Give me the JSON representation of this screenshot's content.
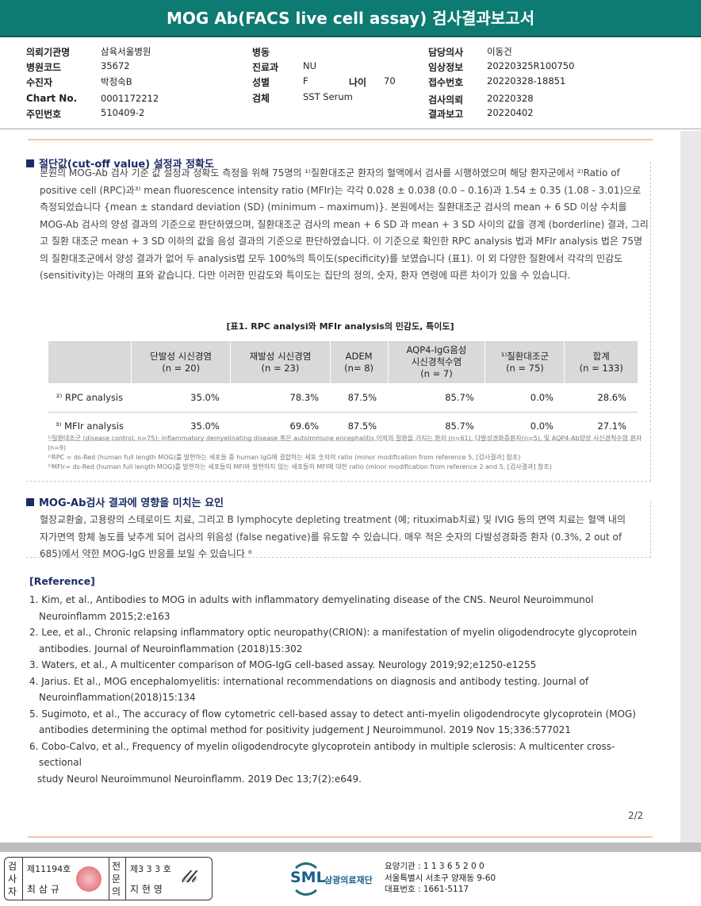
{
  "title": "MOG Ab(FACS live cell assay) 검사결과보고서",
  "info": {
    "col1": [
      {
        "label": "의뢰기관명",
        "value": "삼육서울병원"
      },
      {
        "label": "병원코드",
        "value": "35672"
      },
      {
        "label": "수진자",
        "value": "박정숙B"
      },
      {
        "label": "Chart No.",
        "value": "0001172212"
      },
      {
        "label": "주민번호",
        "value": "510409-2"
      }
    ],
    "col2": [
      {
        "label": "병동",
        "value": ""
      },
      {
        "label": "진료과",
        "value": "NU"
      },
      {
        "label": "성별",
        "value": "F"
      },
      {
        "label": "검체",
        "value": "SST Serum"
      }
    ],
    "age": {
      "label": "나이",
      "value": "70"
    },
    "col3": [
      {
        "label": "담당의사",
        "value": "이동건"
      },
      {
        "label": "임상정보",
        "value": "20220325R100750"
      },
      {
        "label": "접수번호",
        "value": "20220328-18851"
      },
      {
        "label": "검사의뢰",
        "value": "20220328"
      },
      {
        "label": "결과보고",
        "value": "20220402"
      }
    ]
  },
  "section1": {
    "heading": "절단값(cut-off value) 설정과 정확도",
    "paragraph": "본원의 MOG-Ab 검사 기준 값 설정과 정확도 측정을 위해 75명의 ¹⁾질환대조군 환자의 혈액에서 검사를 시행하였으며 해당 환자군에서 ²⁾Ratio of positive cell (RPC)과³⁾ mean fluorescence intensity ratio (MFIr)는 각각 0.028 ± 0.038 (0.0 – 0.16)과 1.54 ± 0.35 (1.08 - 3.01)으로 측정되었습니다 {mean ± standard deviation (SD) (minimum – maximum)}. 본원에서는 질환대조군 검사의 mean + 6 SD 이상 수치를 MOG-Ab 검사의 양성 결과의 기준으로 판단하였으며, 질환대조군 검사의 mean + 6 SD 과 mean + 3 SD 사이의 값을 경계 (borderline) 결과, 그리고 질환 대조군 mean + 3 SD 이하의 값을 음성 결과의 기준으로 판단하였습니다. 이 기준으로 확인한 RPC analysis 법과 MFIr analysis 법은 75명의 질환대조군에서 양성 결과가 없어 두 analysis법 모두 100%의 특이도(specificity)를 보였습니다 (표1).  이 외 다양한 질환에서 각각의 민감도(sensitivity)는 아래의 표와 같습니다. 다만 이러한 민감도와 특이도는 집단의 정의, 숫자, 환자 연령에 따른 차이가 있을 수 있습니다.",
    "table_caption": "[표1. RPC analysi와 MFIr analysis의 민감도, 특이도]",
    "table": {
      "headers": [
        "",
        "단발성 시신경염\n(n = 20)",
        "재발성 시신경염\n(n = 23)",
        "ADEM\n(n= 8)",
        "AQP4-IgG음성\n시신경척수염\n(n = 7)",
        "¹⁾질환대조군\n(n = 75)",
        "합계\n(n = 133)"
      ],
      "rows": [
        {
          "label": "²⁾ RPC analysis",
          "values": [
            "35.0%",
            "78.3%",
            "87.5%",
            "85.7%",
            "0.0%",
            "28.6%"
          ]
        },
        {
          "label": "³⁾ MFIr analysis",
          "values": [
            "35.0%",
            "69.6%",
            "87.5%",
            "85.7%",
            "0.0%",
            "27.1%"
          ]
        }
      ]
    },
    "notes": [
      "¹⁾질환대조군 (disease control, n=75): inflammatory demyelinating disease 혹은 autoimmune encephalitis 이외의 질환을 가지는 환자 (n=61), 다발성경화증환자(n=5), 및 AQP4-Ab양성 시신경척수염 환자(n=9)",
      "²⁾RPC = ds-Red (human full length MOG)를 발현하는 세포들 중 human IgG에 결합하는 세포 숫자의 ratio (minor modification from reference 5, [검사결과] 참조)",
      "³⁾MFIr= ds-Red (human full length MOG)를 발현하는 세포들의 MFI와 발현하지 않는 세포들의 MFI에 대한 ratio (minor modification from reference 2 and 5, [검사결과] 참조)"
    ]
  },
  "section2": {
    "heading": "MOG-Ab검사 결과에 영향을 미치는 요인",
    "paragraph": "혈장교환술, 고용량의 스테로이드 치료, 그리고 B lymphocyte depleting treatment (예; rituximab치료) 및 IVIG 등의 면역 치료는 혈액 내의 자가면역 항체 농도를 낮추게 되어 검사의 위음성 (false negative)를 유도할 수 있습니다. 매우 적은 숫자의 다발성경화증 환자 (0.3%, 2 out of 685)에서 약한 MOG-IgG 반응를 보일 수 있습니다 ⁸"
  },
  "reference": {
    "heading": "[Reference]",
    "items": [
      "1. Kim, et al., Antibodies to MOG in adults with inflammatory demyelinating disease of the CNS. Neurol Neuroimmunol Neuroinflamm 2015;2:e163",
      "2. Lee, et al., Chronic relapsing inflammatory optic neuropathy(CRION): a manifestation of myelin oligodendrocyte glycoprotein antibodies. Journal of Neuroinflammation (2018)15:302",
      "3. Waters, et al., A multicenter comparison of MOG-IgG cell-based assay. Neurology 2019;92;e1250-e1255",
      "4. Jarius. Et al., MOG encephalomyelitis: international recommendations on diagnosis and antibody testing. Journal of Neuroinflammation(2018)15:134",
      "5. Sugimoto, et al., The accuracy of flow cytometric cell-based assay to detect anti-myelin oligodendrocyte glycoprotein (MOG) antibodies determining the optimal method for positivity judgement J Neuroimmunol. 2019 Nov 15;336:577021",
      "6. Cobo-Calvo, et al., Frequency of myelin oligodendrocyte glycoprotein antibody in multiple sclerosis: A multicenter cross-sectional",
      "study Neurol Neuroimmunol Neuroinflamm. 2019 Dec 13;7(2):e649."
    ]
  },
  "page_number": "2/2",
  "footer": {
    "examiner_label": "검사자",
    "examiner_no": "제11194호",
    "examiner_name": "최 삼 규",
    "specialist_label": "전문의",
    "specialist_no": "제3 3 3 호",
    "specialist_name": "지 현 영",
    "logo_text": "SML",
    "org_name": "삼광의료재단",
    "lines": [
      "요양기관 : 1 1 3 6 5 2 0 0",
      "서울특별시 서초구 양재동 9-60",
      "대표번호 : 1661-5117"
    ]
  },
  "colors": {
    "title_bar": "#0d7b72",
    "heading": "#1a2b66",
    "divider": "#f3c7ab",
    "seal": "#d9444f"
  }
}
